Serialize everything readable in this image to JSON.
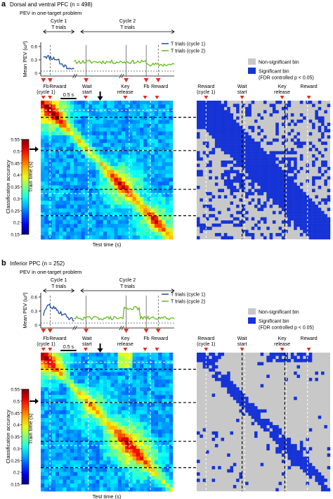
{
  "panels": [
    {
      "letter": "a",
      "title": "Dorsal and ventral PFC (n = 498)",
      "subtitle": "PEV in one-target problem",
      "cycle1": [
        "Cycle 1",
        "T trials"
      ],
      "cycle2": [
        "Cycle 2",
        "T trials"
      ],
      "pev_ylabel": "Mean PEV (ω²)",
      "pev_ticks": [
        "0.6",
        "0.3",
        "0"
      ],
      "legend_lines": [
        "T trials (cycle 1)",
        "T trials (cycle 2)"
      ],
      "sig_legend": [
        "Non-significant bin",
        "Significant bin",
        "(FDR controlled p < 0.05)"
      ],
      "events_left": [
        [
          "Fb",
          "(cycle 1)"
        ],
        [
          "Reward"
        ],
        [
          "Wait",
          "start"
        ],
        [
          "Key",
          "release"
        ],
        [
          "Fb"
        ],
        [
          "Reward"
        ]
      ],
      "events_right": [
        [
          "Reward",
          "(cycle 1)"
        ],
        [
          "Wait",
          "start"
        ],
        [
          "Key",
          "release"
        ],
        [
          "Reward"
        ]
      ],
      "scale_bar": "0.5 s",
      "colorbar_label": "Classification accuracy",
      "colorbar_ticks": [
        "0.55",
        "0.5",
        "0.45",
        "0.4",
        "0.35",
        "0.3",
        "0.25",
        "0.2",
        "0.15"
      ],
      "ylabel": "Train time (s)",
      "xlabel": "Test time (s)"
    },
    {
      "letter": "b",
      "title": "Inferior PPC (n = 252)",
      "subtitle": "PEV in one-target problem",
      "cycle1": [
        "Cycle 1",
        "T trials"
      ],
      "cycle2": [
        "Cycle 2",
        "T trials"
      ],
      "pev_ylabel": "Mean PEV (ω²)",
      "pev_ticks": [
        "0.6",
        "0.3",
        "0"
      ],
      "legend_lines": [
        "T trials (cycle 1)",
        "T trials (cycle 2)"
      ],
      "sig_legend": [
        "Non-significant bin",
        "Significant bin",
        "(FDR controlled p < 0.05)"
      ],
      "events_left": [
        [
          "Fb",
          "(cycle 1)"
        ],
        [
          "Reward"
        ],
        [
          "Wait",
          "start"
        ],
        [
          "Key",
          "release"
        ],
        [
          "Fb"
        ],
        [
          "Reward"
        ]
      ],
      "events_right": [
        [
          "Reward",
          "(cycle 1)"
        ],
        [
          "Wait",
          "start"
        ],
        [
          "Key",
          "release"
        ],
        [
          "Reward"
        ]
      ],
      "scale_bar": "0.5 s",
      "colorbar_label": "Classification accuracy",
      "colorbar_ticks": [
        "0.55",
        "0.5",
        "0.45",
        "0.4",
        "0.35",
        "0.3",
        "0.25",
        "0.2",
        "0.15"
      ],
      "ylabel": "Train time (s)",
      "xlabel": "Test time (s)"
    }
  ],
  "colors": {
    "cycle1_line": "#1f4e9c",
    "cycle2_line": "#66bb22",
    "event_marker": "#e0301e",
    "nonsig": "#c8c8c8",
    "sig": "#1533d6"
  }
}
